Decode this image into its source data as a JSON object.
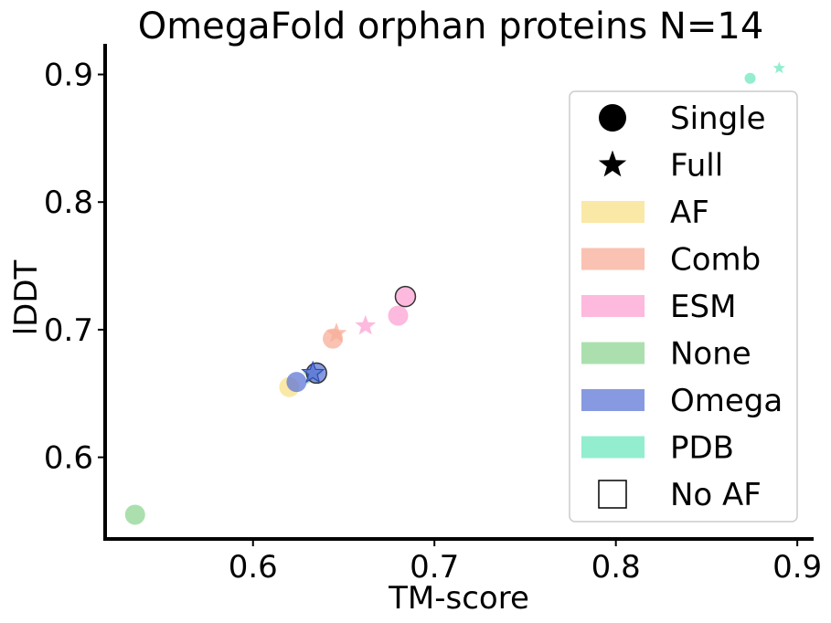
{
  "chart_data": {
    "type": "scatter",
    "title": "OmegaFold orphan proteins N=14",
    "xlabel": "TM-score",
    "ylabel": "lDDT",
    "xlim": [
      0.5185,
      0.909
    ],
    "ylim": [
      0.536,
      0.924
    ],
    "xticks": [
      0.6,
      0.7,
      0.8,
      0.9
    ],
    "xtick_labels": [
      "0.6",
      "0.7",
      "0.8",
      "0.9"
    ],
    "yticks": [
      0.6,
      0.7,
      0.8,
      0.9
    ],
    "ytick_labels": [
      "0.6",
      "0.7",
      "0.8",
      "0.9"
    ],
    "grid": false,
    "legend_position": "right",
    "colors": {
      "AF": "#f8e08a",
      "Comb": "#f7ad98",
      "ESM": "#fca2d3",
      "None": "#8fd693",
      "Omega": "#5f78d7",
      "PDB": "#6de8bd"
    },
    "legend": [
      {
        "label": "Single",
        "kind": "marker",
        "marker": "circle"
      },
      {
        "label": "Full",
        "kind": "marker",
        "marker": "star"
      },
      {
        "label": "AF",
        "kind": "patch",
        "group": "AF"
      },
      {
        "label": "Comb",
        "kind": "patch",
        "group": "Comb"
      },
      {
        "label": "ESM",
        "kind": "patch",
        "group": "ESM"
      },
      {
        "label": "None",
        "kind": "patch",
        "group": "None"
      },
      {
        "label": "Omega",
        "kind": "patch",
        "group": "Omega"
      },
      {
        "label": "PDB",
        "kind": "patch",
        "group": "PDB"
      },
      {
        "label": "No AF",
        "kind": "marker",
        "marker": "square-outline"
      }
    ],
    "points": [
      {
        "group": "None",
        "input": "Single",
        "x": 0.535,
        "y": 0.555,
        "no_af": false
      },
      {
        "group": "AF",
        "input": "Single",
        "x": 0.62,
        "y": 0.655,
        "no_af": false
      },
      {
        "group": "None",
        "input": "Full",
        "x": 0.633,
        "y": 0.664,
        "no_af": false
      },
      {
        "group": "Omega",
        "input": "Single",
        "x": 0.624,
        "y": 0.659,
        "no_af": false
      },
      {
        "group": "Omega",
        "input": "Single",
        "x": 0.635,
        "y": 0.666,
        "no_af": true
      },
      {
        "group": "Omega",
        "input": "Full",
        "x": 0.633,
        "y": 0.666,
        "no_af": false
      },
      {
        "group": "Comb",
        "input": "Single",
        "x": 0.644,
        "y": 0.693,
        "no_af": false
      },
      {
        "group": "Comb",
        "input": "Full",
        "x": 0.646,
        "y": 0.697,
        "no_af": false
      },
      {
        "group": "ESM",
        "input": "Full",
        "x": 0.662,
        "y": 0.703,
        "no_af": false
      },
      {
        "group": "ESM",
        "input": "Single",
        "x": 0.68,
        "y": 0.711,
        "no_af": false
      },
      {
        "group": "ESM",
        "input": "Single",
        "x": 0.684,
        "y": 0.726,
        "no_af": true
      },
      {
        "group": "PDB",
        "input": "Single",
        "x": 0.874,
        "y": 0.897,
        "no_af": false
      },
      {
        "group": "PDB",
        "input": "Full",
        "x": 0.89,
        "y": 0.905,
        "no_af": false
      }
    ]
  }
}
